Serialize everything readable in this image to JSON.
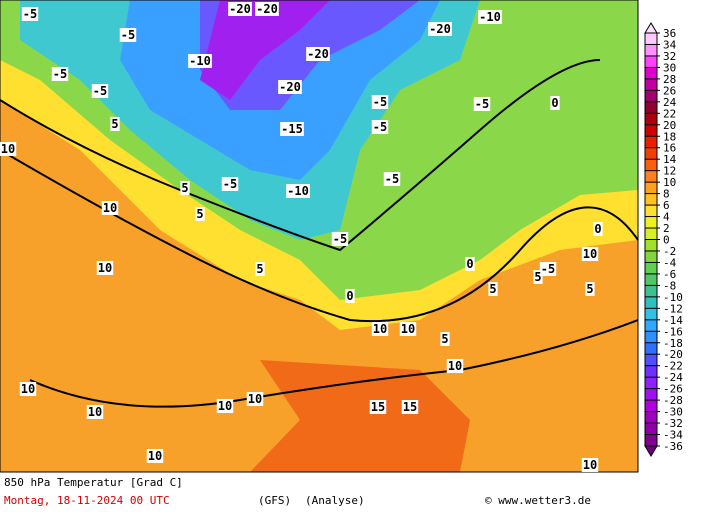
{
  "footer": {
    "title": "850 hPa Temperatur [Grad C]",
    "date": "Montag, 18-11-2024  00 UTC",
    "model": "(GFS)",
    "run": "(Analyse)",
    "credit": "© www.wetter3.de"
  },
  "colorbar": {
    "ticks": [
      36,
      34,
      32,
      30,
      28,
      26,
      24,
      22,
      20,
      18,
      16,
      14,
      12,
      10,
      8,
      6,
      4,
      2,
      0,
      -2,
      -4,
      -6,
      -8,
      -10,
      -12,
      -14,
      -16,
      -18,
      -20,
      -22,
      -24,
      -26,
      -28,
      -30,
      -32,
      -34,
      -36
    ],
    "colors": [
      "#ffc8ff",
      "#ff90ff",
      "#ff40ff",
      "#e000d0",
      "#c000a0",
      "#a00070",
      "#900030",
      "#b00010",
      "#d00000",
      "#e82000",
      "#f04000",
      "#f86010",
      "#ff8020",
      "#ffa020",
      "#ffc020",
      "#ffe030",
      "#f0f020",
      "#d8f020",
      "#a0e030",
      "#80d840",
      "#60d050",
      "#50c868",
      "#40c090",
      "#30c0c0",
      "#30c0e8",
      "#30a8ff",
      "#3090ff",
      "#3070ff",
      "#5050ff",
      "#7030ff",
      "#9020ff",
      "#a010f0",
      "#b000e0",
      "#a000c0",
      "#9000a8",
      "#800090"
    ],
    "top_color": "#ffe0ff",
    "bottom_color": "#700080"
  },
  "contour_labels": [
    10,
    10,
    10,
    5,
    5,
    -5,
    -10,
    -15,
    -20,
    -20,
    -20,
    -20,
    -10,
    -5,
    -5,
    -5,
    -5,
    5,
    5,
    0,
    0,
    0,
    0,
    -5,
    5,
    10,
    5,
    5,
    5,
    10,
    10,
    10,
    10,
    10,
    10,
    10,
    10,
    15,
    15,
    10,
    -10,
    -20,
    -5,
    -5,
    -5,
    -5,
    -5
  ]
}
